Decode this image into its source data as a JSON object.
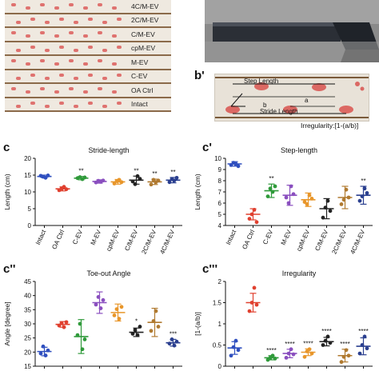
{
  "panels": {
    "b_prime": "b'",
    "c": "c",
    "c_prime": "c'",
    "c_dprime": "c''",
    "c_tprime": "c'''"
  },
  "photo_a": {
    "track_labels": [
      "4C/M-EV",
      "2C/M-EV",
      "C/M-EV",
      "cpM-EV",
      "M-EV",
      "C-EV",
      "OA Ctrl",
      "Intact"
    ]
  },
  "photo_b": {
    "step_length": "Step Length",
    "stride_length": "Stride Length",
    "a_label": "a",
    "b_label": "b",
    "irregularity_formula": "Irregularity:[1-(a/b)]"
  },
  "colors": {
    "Intact": "#2f4fbf",
    "OA Ctrl": "#e0402f",
    "C-EV": "#2f9a3a",
    "M-EV": "#8a4fbf",
    "cpM-EV": "#e8962a",
    "C/M-EV": "#222222",
    "2C/M-EV": "#b07a30",
    "4C/M-EV": "#2a3f8f"
  },
  "chart_data": [
    {
      "type": "scatter",
      "title": "Stride-length",
      "ylabel": "Length (cm)",
      "ylim": [
        0,
        20
      ],
      "yticks": [
        0,
        5,
        10,
        15,
        20
      ],
      "categories": [
        "Intact",
        "OA Ctrl",
        "C-EV",
        "M-EV",
        "cpM-EV",
        "C/M-EV",
        "2C/M-EV",
        "4C/M-EV"
      ],
      "points": [
        [
          14.8,
          14.5,
          14.2,
          14.9
        ],
        [
          10.5,
          11.0,
          11.5,
          10.8
        ],
        [
          14.1,
          14.4,
          13.8,
          14.3
        ],
        [
          12.8,
          13.3,
          13.0,
          13.4
        ],
        [
          12.5,
          13.2,
          13.6,
          12.9
        ],
        [
          13.1,
          12.3,
          14.7,
          13.9
        ],
        [
          12.2,
          13.6,
          12.9,
          13.4
        ],
        [
          12.9,
          13.8,
          13.4,
          14.2
        ]
      ],
      "mean": [
        14.6,
        10.9,
        14.1,
        13.1,
        13.0,
        13.5,
        13.0,
        13.5
      ],
      "err": [
        0.4,
        0.6,
        0.5,
        0.5,
        0.7,
        1.2,
        0.8,
        0.8
      ],
      "sig": [
        "",
        "",
        "**",
        "",
        "",
        "**",
        "**",
        "**"
      ],
      "grid": false
    },
    {
      "type": "scatter",
      "title": "Step-length",
      "ylabel": "Length (cm)",
      "ylim": [
        4,
        10
      ],
      "yticks": [
        4,
        5,
        6,
        7,
        8,
        9,
        10
      ],
      "categories": [
        "Intact",
        "OA Ctrl",
        "C-EV",
        "M-EV",
        "cpM-EV",
        "C/M-EV",
        "2C/M-EV",
        "4C/M-EV"
      ],
      "points": [
        [
          9.4,
          9.6,
          9.5,
          9.3
        ],
        [
          4.6,
          5.0,
          5.4,
          4.3
        ],
        [
          6.6,
          7.3,
          7.0,
          7.5
        ],
        [
          6.5,
          6.0,
          7.5,
          6.8
        ],
        [
          6.1,
          5.9,
          6.7,
          6.4
        ],
        [
          4.7,
          5.6,
          6.2,
          5.3
        ],
        [
          5.9,
          6.3,
          7.2,
          6.5
        ],
        [
          6.2,
          6.6,
          7.3,
          6.9
        ]
      ],
      "mean": [
        9.5,
        5.0,
        7.1,
        6.7,
        6.3,
        5.5,
        6.5,
        6.7
      ],
      "err": [
        0.2,
        0.5,
        0.6,
        0.9,
        0.6,
        0.9,
        1.0,
        0.8
      ],
      "sig": [
        "",
        "",
        "**",
        "",
        "",
        "",
        "",
        "**"
      ],
      "grid": false
    },
    {
      "type": "scatter",
      "title": "Toe-out Angle",
      "ylabel": "Angle [degree]",
      "ylim": [
        15,
        45
      ],
      "yticks": [
        15,
        20,
        25,
        30,
        35,
        40,
        45
      ],
      "categories": [
        "Intact",
        "OA Ctrl",
        "C-EV",
        "M-EV",
        "cpM-EV",
        "C/M-EV",
        "2C/M-EV",
        "4C/M-EV"
      ],
      "points": [
        [
          19.5,
          22.0,
          18.8,
          20.6
        ],
        [
          29.4,
          30.2,
          28.8,
          30.6
        ],
        [
          26.0,
          30.0,
          21.0,
          24.5
        ],
        [
          36.8,
          39.5,
          35.5,
          38.4
        ],
        [
          33.0,
          35.2,
          31.8,
          36.0
        ],
        [
          26.5,
          27.8,
          26.0,
          29.0
        ],
        [
          27.5,
          31.0,
          34.5,
          29.0
        ],
        [
          23.0,
          24.5,
          22.3,
          23.7
        ]
      ],
      "mean": [
        20.2,
        29.8,
        25.5,
        37.5,
        34.0,
        27.0,
        30.5,
        23.3
      ],
      "err": [
        1.5,
        1.0,
        6.0,
        3.8,
        3.0,
        1.5,
        5.0,
        1.2
      ],
      "sig": [
        "",
        "",
        "",
        "",
        "",
        "*",
        "",
        "***"
      ],
      "grid": false
    },
    {
      "type": "scatter",
      "title": "Irregularity",
      "ylabel": "[1-(a/b)]",
      "ylim": [
        0,
        2
      ],
      "yticks": [
        0,
        0.5,
        1.0,
        1.5,
        2.0
      ],
      "categories": [
        "Intact",
        "OA Ctrl",
        "C-EV",
        "M-EV",
        "cpM-EV",
        "C/M-EV",
        "2C/M-EV",
        "4C/M-EV"
      ],
      "points": [
        [
          0.25,
          0.45,
          0.6,
          0.38
        ],
        [
          1.3,
          1.5,
          1.85,
          1.45
        ],
        [
          0.15,
          0.2,
          0.25,
          0.18
        ],
        [
          0.2,
          0.3,
          0.4,
          0.28
        ],
        [
          0.22,
          0.35,
          0.4,
          0.3
        ],
        [
          0.5,
          0.6,
          0.7,
          0.55
        ],
        [
          0.1,
          0.22,
          0.38,
          0.25
        ],
        [
          0.3,
          0.5,
          0.7,
          0.42
        ]
      ],
      "mean": [
        0.43,
        1.5,
        0.2,
        0.3,
        0.33,
        0.58,
        0.25,
        0.47
      ],
      "err": [
        0.15,
        0.22,
        0.05,
        0.1,
        0.08,
        0.1,
        0.15,
        0.2
      ],
      "sig": [
        "",
        "",
        "****",
        "****",
        "****",
        "****",
        "****",
        "****"
      ],
      "grid": false
    }
  ]
}
